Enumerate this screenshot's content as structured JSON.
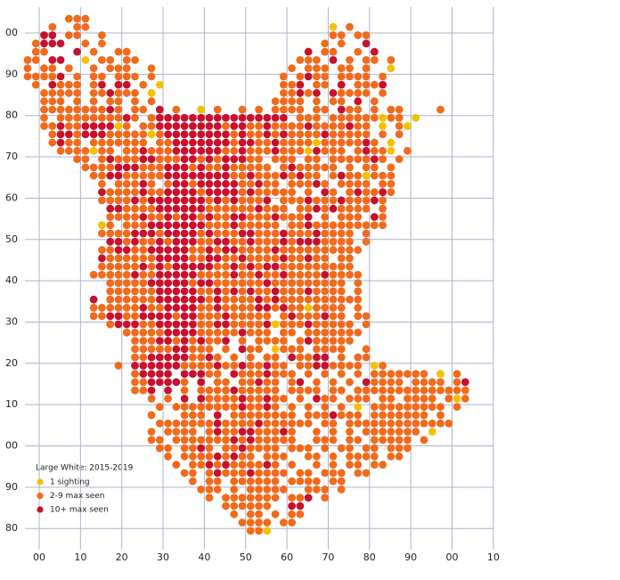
{
  "map": {
    "x_labels": [
      "00",
      "10",
      "20",
      "30",
      "40",
      "50",
      "60",
      "70",
      "80",
      "90",
      "00",
      "10"
    ],
    "y_labels": [
      "00",
      "90",
      "80",
      "70",
      "60",
      "50",
      "40",
      "30",
      "20",
      "10",
      "00",
      "90",
      "80"
    ],
    "legend": {
      "title": "Large White:  2015-2019",
      "items": [
        {
          "label": "1 sighting",
          "color": "#f2c200"
        },
        {
          "label": "2-9 max seen",
          "color": "#f26a1b"
        },
        {
          "label": "10+ max seen",
          "color": "#c8102e"
        }
      ]
    },
    "tetrads": {
      "rows": [
        ".....222",
        "...2..22.............................1.2",
        "..33.22..2...........................22.22",
        ".2333..2.2..........................2.2..3",
        ".22...3.2..22.....................3.22..2.3",
        "22.33..1.22.22...................222.3.2.22.2",
        "2.22.2..2.222..2................2.222.22.2..1",
        "22223.2.22.222.2...............2.2322.2222.2",
        ".2.3222.23.33.2.1..............223.22.3.2223",
        "..22222.223222.1...............22323.32222.2",
        "..222.2.2.22.2.2..............2222.2.22.3.2",
        "..2222222232.22.3.2..1.2..2.2.2222.22.322.2.22....2",
        "..2.2222222232.23333333333333333.222.222222122.1",
        "..22322333312.2233333333233223222232222322.1.21",
        "...233233322222123333333323223232222322222.2.2",
        "...2322.2222222.223333333233223222212222232.1",
        "....2222122.223222333333223222322213222.23221.2",
        "......22.23222332223323233322.222.22.2222232.2",
        ".......22223332223332322322222.2322222.2.22.2",
        "........2233222223333333322322232322.23221222",
        ".........2.22232.23323333322322.22232.2222.22",
        ".........322223223333233332322222.2.32.232232",
        ".........222232333333323232223.2223222322232",
        "..........3322223333332222223222.223232222.2",
        "..........2222322323323223322232223.2.222.32",
        ".........12.2223333333222322222.223222222222",
        ".........2222333233332322233222322232222.2",
        "..........332322323332233223222323332222.2",
        ".........22332233333223233222232222222222",
        ".........3222222333322332232222322322.22",
        ".........2222232323333322323233222222222",
        "........222223223333322223223223222232222",
        "..........22222333332332222223222222222.2",
        "..........22222233333223232322322232222.2",
        "........3.2222223333332322223232222222222",
        "........2222223223333223222233232212222.2",
        "........2233223333233222322222.23222322.22",
        "..........233322333332233222231222322222.2",
        "............222223333222223222.22.2222222",
        ".............222332323223.2.2222.2322222",
        ".............2222233222.2.322.1222.2222..2",
        ".............22333332232.2.2.22.32233.2.22",
        "...........2.3333332222322322322.22332222.12",
        ".............23333.33322.32223222.2.2.2.2.2222222.1.2",
        ".............2233332.3.22.22322.23.2.2.2.32222.2222.23",
        ".............223.3.2.2222322222.2222.22.22222222222222",
        "...............2.2.3.32222322322.2.322.222.22.2222.212",
        "................2.2222222232232.2.2.2.2.1.222222222.2",
        "...............2...222.3.22222222.2223222.2222222.2",
        "................2222222322223222222.22.2222222222222",
        "...............2.2222.23223322232..2.2.2.2222222.1",
        "...............22.222222232322222..222.22.22222.2",
        "................22.2232.2232222.222.2.22.22.222",
        ".................2.222232322.222..22.2.2222.22",
        "..................2.22323222232.2..2.2.22.22",
        "...................22.2322232222.22.222.22",
        "....................2.22.222222.2222.22",
        ".....................222.2.22222..222.2",
        "......................2.2222222.223.2",
        "........................222222..33",
        ".........................2.22.2.22",
        "..........................2222.22",
        "...........................221"
      ]
    }
  }
}
